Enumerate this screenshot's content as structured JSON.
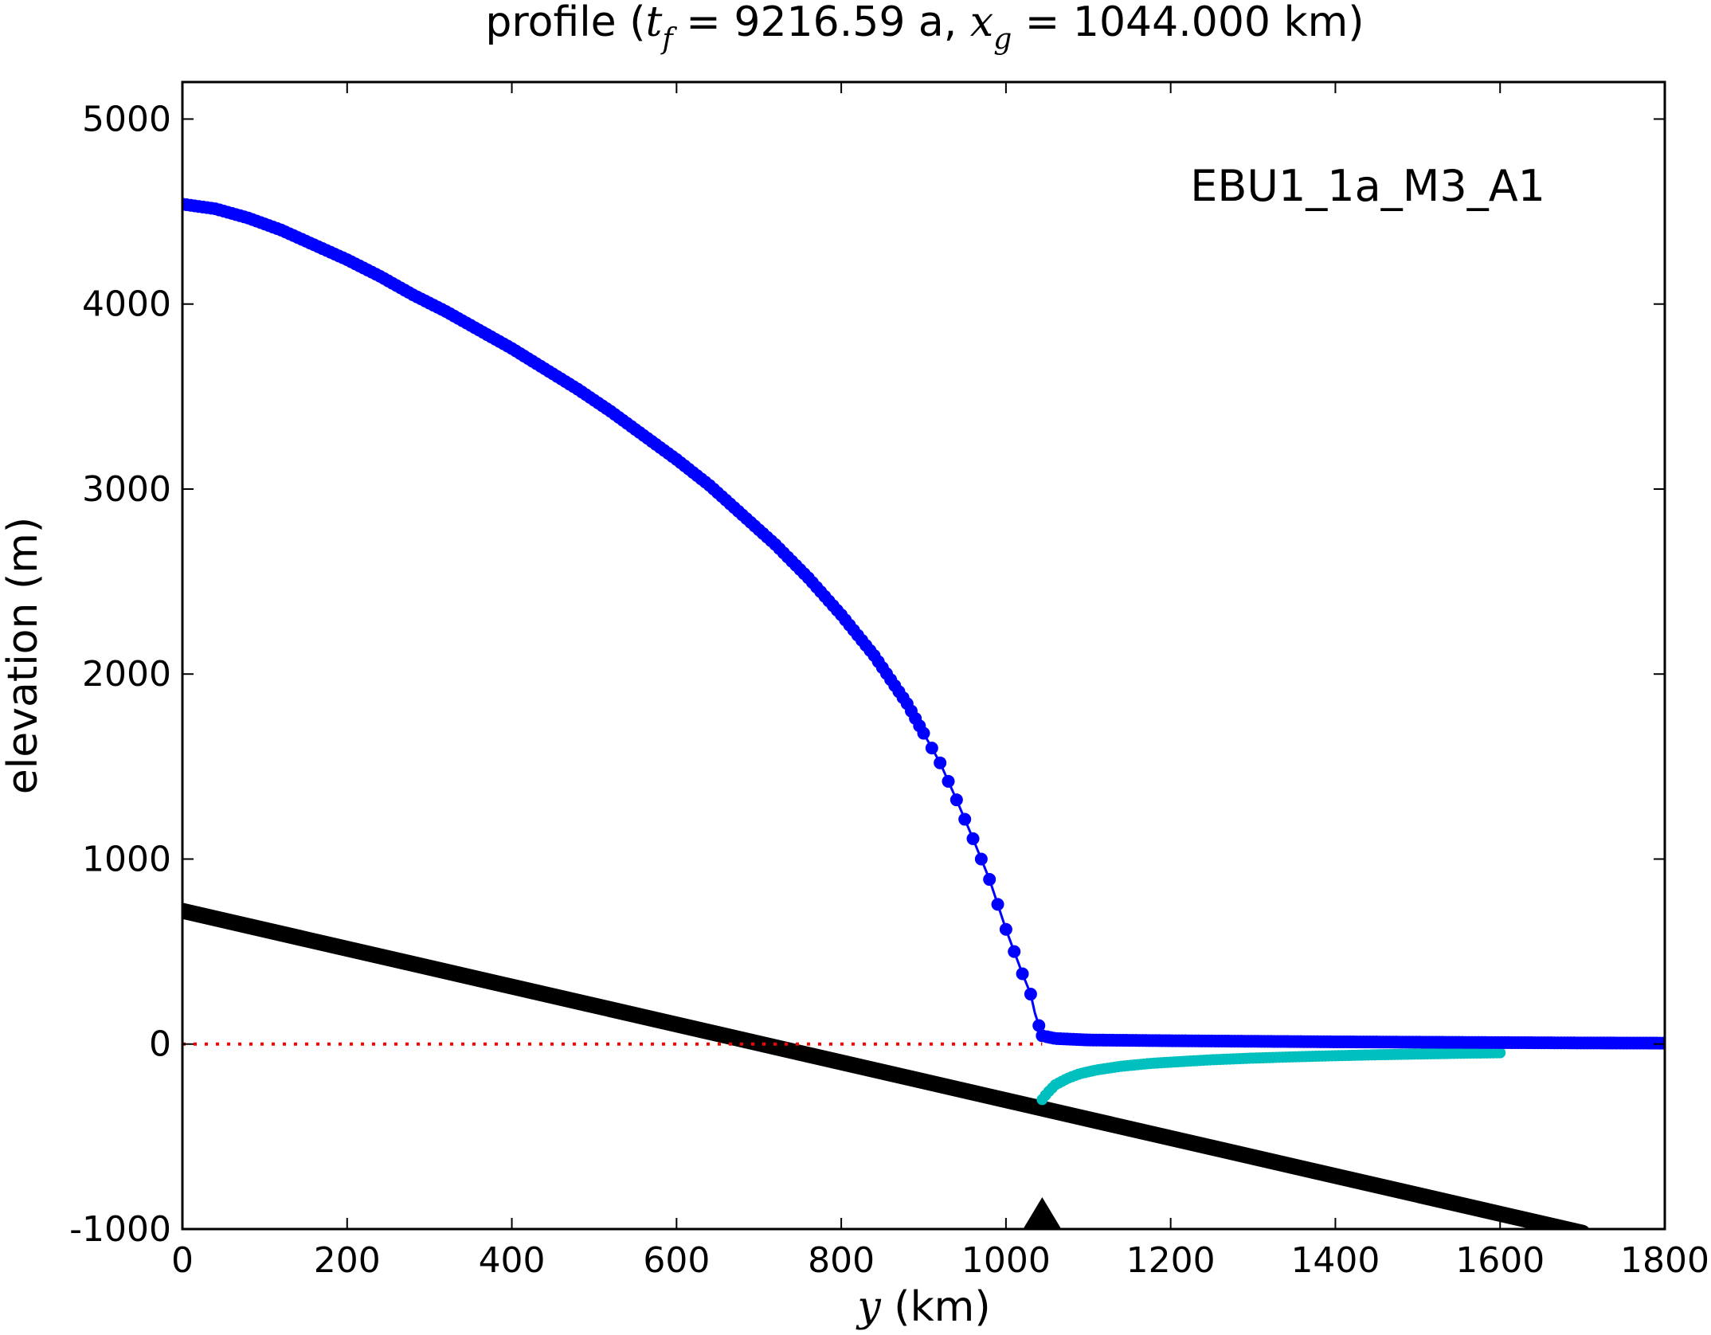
{
  "chart_data": {
    "type": "line",
    "title": "profile (t_f = 9216.59 a, x_g = 1044.000 km)",
    "title_parts": {
      "prefix": "profile (",
      "t_symbol": "t",
      "t_sub": "f",
      "t_value": " = 9216.59 a, ",
      "x_symbol": "x",
      "x_sub": "g",
      "x_value": " = 1044.000 km)"
    },
    "xlabel": "y (km)",
    "xlabel_parts": {
      "symbol": "y",
      "rest": " (km)"
    },
    "ylabel": "elevation (m)",
    "annotation": "EBU1_1a_M3_A1",
    "xlim": [
      0,
      1800
    ],
    "ylim": [
      -1000,
      5200
    ],
    "xticks": [
      0,
      200,
      400,
      600,
      800,
      1000,
      1200,
      1400,
      1600,
      1800
    ],
    "yticks": [
      -1000,
      0,
      1000,
      2000,
      3000,
      4000,
      5000
    ],
    "grid": false,
    "grounding_line_marker": {
      "x": 1044,
      "y": -1000,
      "color": "#000000"
    },
    "series": [
      {
        "role": "ice-surface",
        "color": "#0000ff",
        "style": "line-markers",
        "x": [
          0,
          40,
          80,
          120,
          160,
          200,
          240,
          280,
          320,
          360,
          400,
          440,
          480,
          520,
          560,
          600,
          640,
          680,
          720,
          760,
          800,
          840,
          880,
          920,
          940,
          960,
          980,
          1000,
          1010,
          1020,
          1030,
          1035,
          1040,
          1044,
          1060,
          1100,
          1200,
          1300,
          1400,
          1500,
          1600,
          1700,
          1800
        ],
        "y": [
          4540,
          4515,
          4465,
          4400,
          4320,
          4240,
          4150,
          4050,
          3960,
          3860,
          3760,
          3650,
          3540,
          3420,
          3290,
          3160,
          3020,
          2860,
          2700,
          2520,
          2320,
          2100,
          1840,
          1520,
          1320,
          1110,
          890,
          620,
          500,
          380,
          270,
          170,
          100,
          45,
          30,
          22,
          18,
          15,
          12,
          10,
          8,
          6,
          5
        ]
      },
      {
        "role": "ice-base",
        "color": "#00bfbf",
        "style": "markers",
        "x": [
          1044,
          1050,
          1060,
          1075,
          1090,
          1110,
          1140,
          1175,
          1200,
          1250,
          1300,
          1350,
          1400,
          1450,
          1500,
          1550,
          1600
        ],
        "y": [
          -300,
          -265,
          -220,
          -185,
          -160,
          -140,
          -120,
          -105,
          -98,
          -85,
          -76,
          -69,
          -63,
          -58,
          -54,
          -50,
          -47
        ]
      },
      {
        "role": "bedrock",
        "color": "#000000",
        "style": "line",
        "x": [
          0,
          1700
        ],
        "y": [
          720,
          -1020
        ]
      },
      {
        "role": "sea-level",
        "color": "#ff0000",
        "style": "dotted",
        "x": [
          0,
          1044
        ],
        "y": [
          0,
          0
        ]
      }
    ]
  }
}
